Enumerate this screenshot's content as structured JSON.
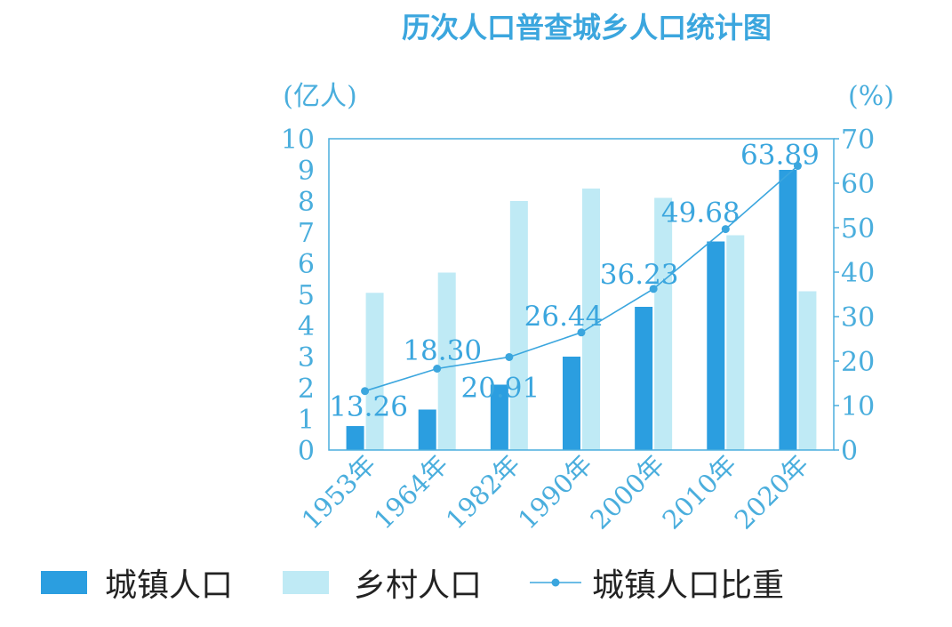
{
  "chart_data": {
    "type": "bar",
    "title": "历次人口普查城乡人口统计图",
    "y_left_unit": "(亿人)",
    "y_right_unit": "(%)",
    "categories": [
      "1953年",
      "1964年",
      "1982年",
      "1990年",
      "2000年",
      "2010年",
      "2020年"
    ],
    "series": [
      {
        "name": "城镇人口",
        "kind": "bar",
        "axis": "left",
        "color": "#2b9ee0",
        "values": [
          0.77,
          1.3,
          2.1,
          3.0,
          4.6,
          6.7,
          9.0
        ]
      },
      {
        "name": "乡村人口",
        "kind": "bar",
        "axis": "left",
        "color": "#bfeaf5",
        "values": [
          5.05,
          5.7,
          8.0,
          8.4,
          8.1,
          6.9,
          5.1
        ]
      },
      {
        "name": "城镇人口比重",
        "kind": "line",
        "axis": "right",
        "color": "#3ba6de",
        "values": [
          13.26,
          18.3,
          20.91,
          26.44,
          36.23,
          49.68,
          63.89
        ],
        "labels": [
          "13.26",
          "18.30",
          "20.91",
          "26.44",
          "36.23",
          "49.68",
          "63.89"
        ]
      }
    ],
    "y_left": {
      "min": 0,
      "max": 10,
      "ticks": [
        "0",
        "1",
        "2",
        "3",
        "4",
        "5",
        "6",
        "7",
        "8",
        "9",
        "10"
      ]
    },
    "y_right": {
      "min": 0,
      "max": 70,
      "ticks": [
        "0",
        "10",
        "20",
        "30",
        "40",
        "50",
        "60",
        "70"
      ]
    },
    "grid": false,
    "legend_position": "bottom"
  }
}
